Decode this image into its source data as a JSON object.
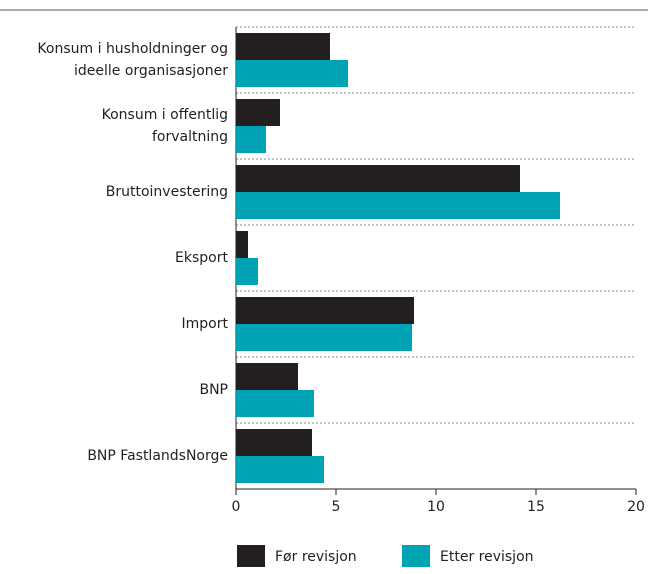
{
  "chart_data": {
    "type": "bar",
    "orientation": "horizontal",
    "categories": [
      [
        "Konsum i husholdninger og",
        "ideelle organisasjoner"
      ],
      [
        "Konsum i offentlig",
        "forvaltning"
      ],
      [
        "Bruttoinvestering"
      ],
      [
        "Eksport"
      ],
      [
        "Import"
      ],
      [
        "BNP"
      ],
      [
        "BNP FastlandsNorge"
      ]
    ],
    "series": [
      {
        "name": "Før revisjon",
        "color": "#231f20",
        "values": [
          4.7,
          2.2,
          14.2,
          0.6,
          8.9,
          3.1,
          3.8
        ]
      },
      {
        "name": "Etter revisjon",
        "color": "#00a3b4",
        "values": [
          5.6,
          1.5,
          16.2,
          1.1,
          8.8,
          3.9,
          4.4
        ]
      }
    ],
    "xlim": [
      0,
      20
    ],
    "xticks": [
      0,
      5,
      10,
      15,
      20
    ]
  }
}
